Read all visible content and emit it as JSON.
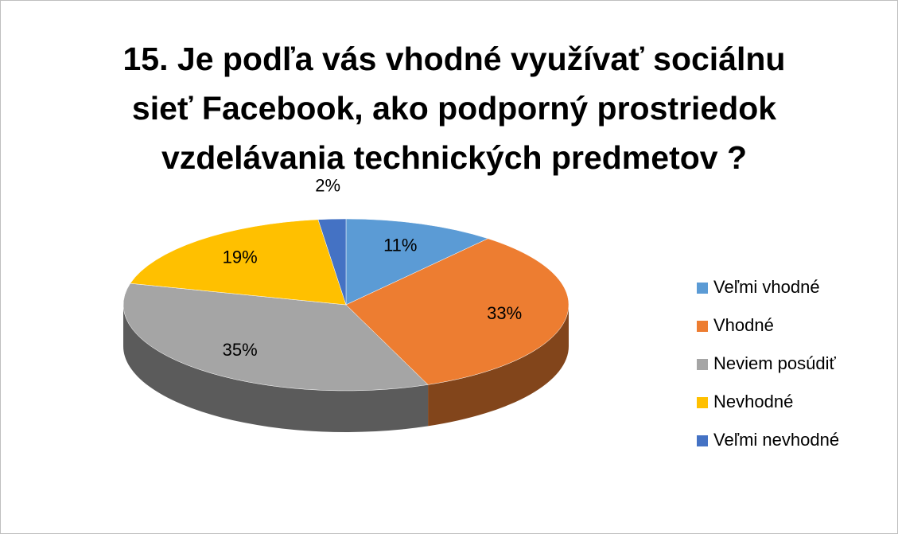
{
  "chart_data": {
    "type": "pie",
    "title": "15. Je podľa vás vhodné využívať sociálnu sieť Facebook, ako podporný prostriedok vzdelávania technických predmetov ?",
    "categories": [
      "Veľmi vhodné",
      "Vhodné",
      "Neviem posúdiť",
      "Nevhodné",
      "Veľmi nevhodné"
    ],
    "values": [
      11,
      33,
      35,
      19,
      2
    ],
    "value_labels": [
      "11%",
      "33%",
      "35%",
      "19%",
      "2%"
    ],
    "colors": [
      "#5b9bd5",
      "#ed7d31",
      "#a5a5a5",
      "#ffc000",
      "#4472c4"
    ],
    "legend": "right"
  }
}
